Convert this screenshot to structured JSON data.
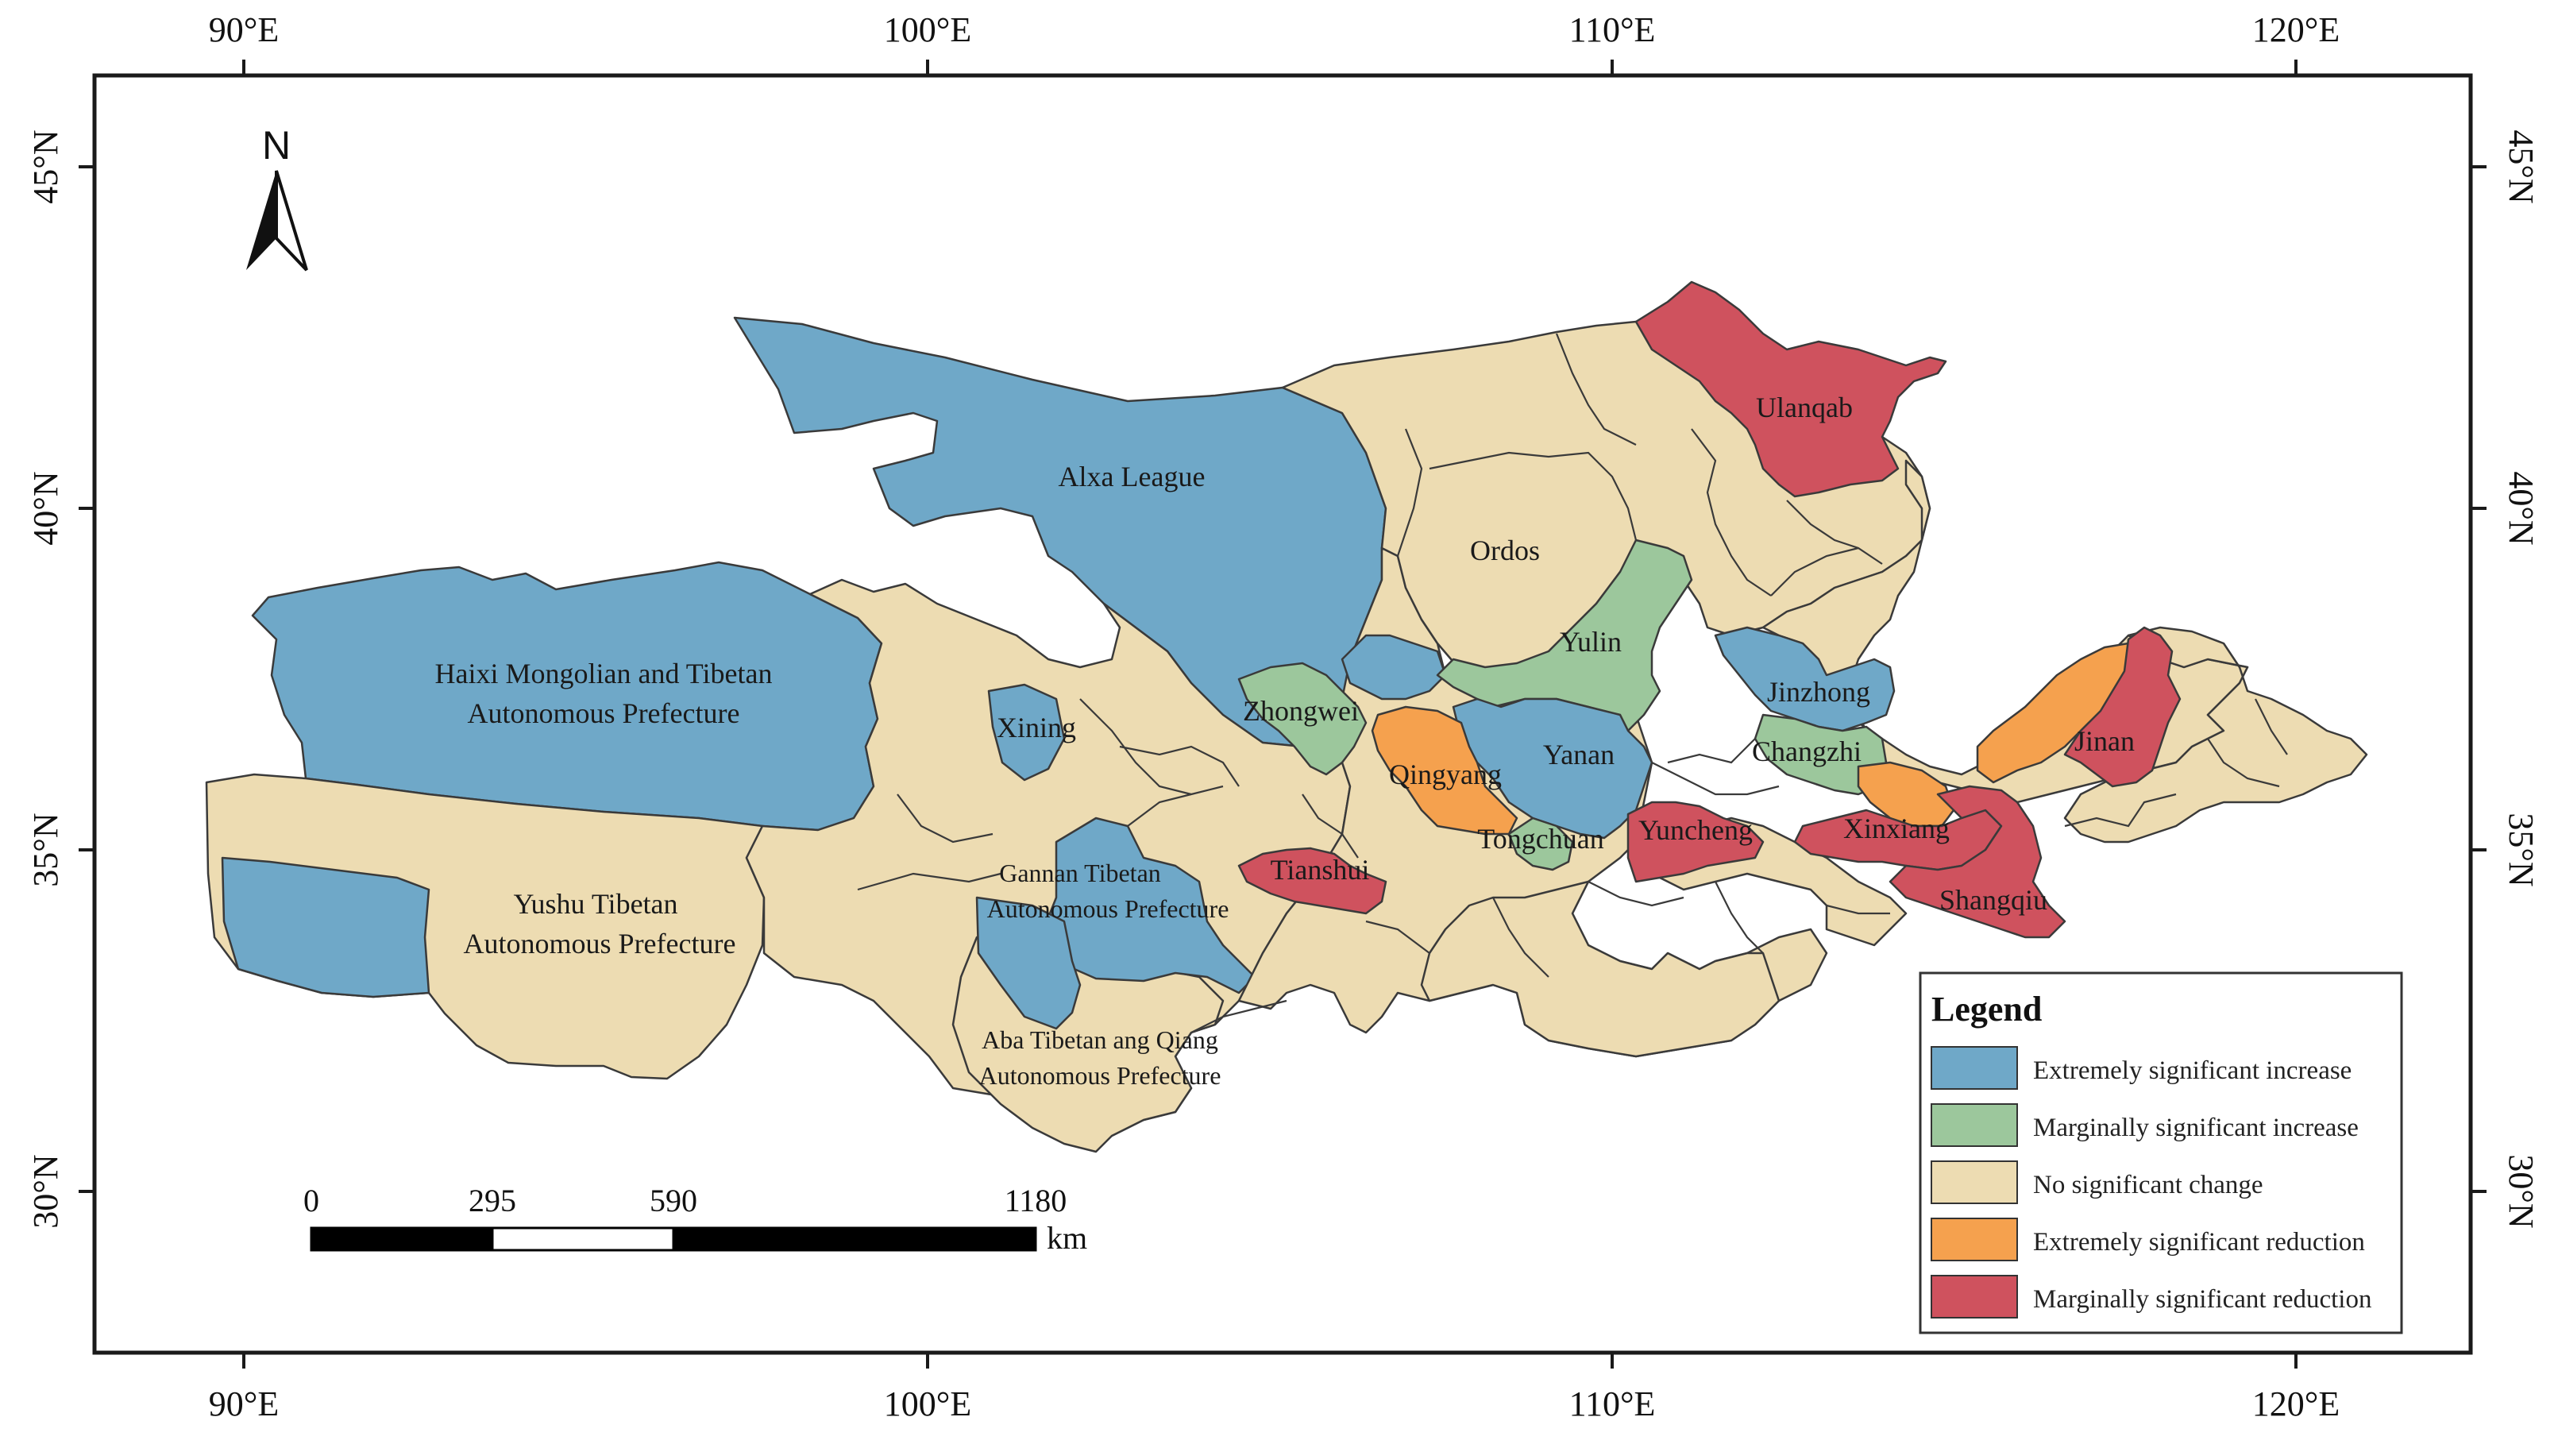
{
  "colors": {
    "extremely_significant_increase": "#6fa8c8",
    "marginally_significant_increase": "#9cc79c",
    "no_significant_change": "#eddcb2",
    "extremely_significant_reduction": "#f5a14e",
    "marginally_significant_reduction": "#cf525e",
    "frame": "#1a1a1a",
    "outline": "#3a3a3a"
  },
  "axes": {
    "top": [
      "90°E",
      "100°E",
      "110°E",
      "120°E"
    ],
    "bottom": [
      "90°E",
      "100°E",
      "110°E",
      "120°E"
    ],
    "left": [
      "45°N",
      "40°N",
      "35°N",
      "30°N"
    ],
    "right": [
      "45°N",
      "40°N",
      "35°N",
      "30°N"
    ]
  },
  "north_arrow": {
    "label": "N"
  },
  "regions": {
    "alxa": "Alxa League",
    "haixi_line1": "Haixi Mongolian and Tibetan",
    "haixi_line2": "Autonomous Prefecture",
    "yushu_line1": "Yushu Tibetan",
    "yushu_line2": "Autonomous Prefecture",
    "xining": "Xining",
    "gannan_line1": "Gannan Tibetan",
    "gannan_line2": "Autonomous Prefecture",
    "aba_line1": "Aba Tibetan ang Qiang",
    "aba_line2": "Autonomous Prefecture",
    "zhongwei": "Zhongwei",
    "qingyang": "Qingyang",
    "tianshui": "Tianshui",
    "tongchuan": "Tongchuan",
    "yanan": "Yanan",
    "yulin": "Yulin",
    "ordos": "Ordos",
    "ulanqab": "Ulanqab",
    "jinzhong": "Jinzhong",
    "changzhi": "Changzhi",
    "yuncheng": "Yuncheng",
    "xinxiang": "Xinxiang",
    "shangqiu": "Shangqiu",
    "jinan": "Jinan"
  },
  "legend": {
    "title": "Legend",
    "items": [
      "Extremely significant increase",
      "Marginally significant increase",
      "No significant change",
      "Extremely significant reduction",
      "Marginally significant reduction"
    ]
  },
  "scale_bar": {
    "labels": [
      "0",
      "295",
      "590",
      "1180"
    ],
    "unit": "km"
  }
}
